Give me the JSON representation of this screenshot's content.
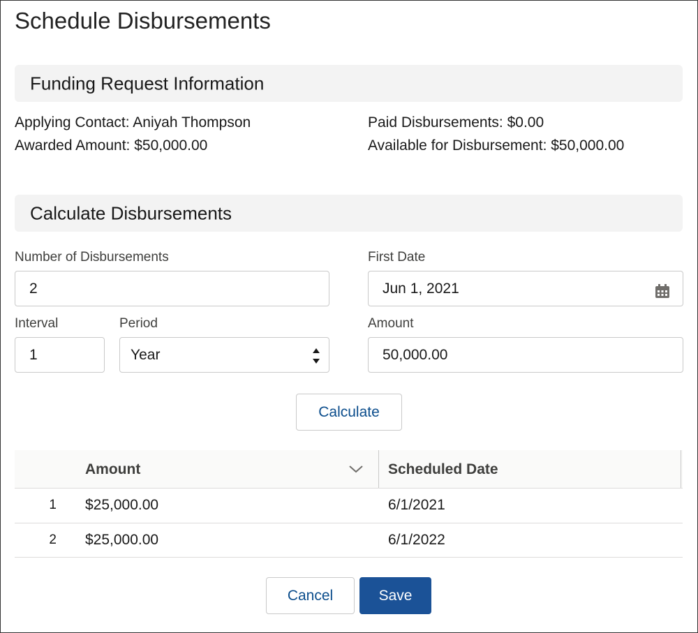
{
  "title": "Schedule Disbursements",
  "funding_section": {
    "heading": "Funding Request Information",
    "fields": [
      {
        "label": "Applying Contact:",
        "value": "Aniyah Thompson"
      },
      {
        "label": "Awarded Amount:",
        "value": "$50,000.00"
      },
      {
        "label": "Paid Disbursements:",
        "value": "$0.00"
      },
      {
        "label": "Available for Disbursement:",
        "value": "$50,000.00"
      }
    ]
  },
  "calculate_section": {
    "heading": "Calculate Disbursements",
    "number_of_disbursements": {
      "label": "Number of Disbursements",
      "value": "2"
    },
    "first_date": {
      "label": "First Date",
      "value": "Jun 1, 2021"
    },
    "interval": {
      "label": "Interval",
      "value": "1"
    },
    "period": {
      "label": "Period",
      "value": "Year"
    },
    "amount": {
      "label": "Amount",
      "value": "50,000.00"
    },
    "button": "Calculate"
  },
  "table": {
    "headers": [
      "Amount",
      "Scheduled Date"
    ],
    "rows": [
      [
        "1",
        "$25,000.00",
        "6/1/2021"
      ],
      [
        "2",
        "$25,000.00",
        "6/1/2022"
      ]
    ]
  },
  "buttons": {
    "cancel": "Cancel",
    "save": "Save"
  }
}
